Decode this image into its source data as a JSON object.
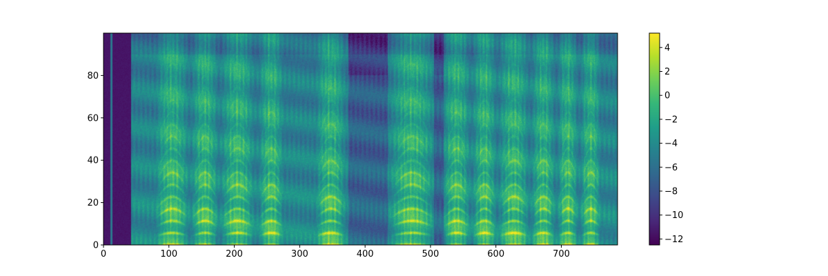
{
  "chart_data": {
    "type": "heatmap",
    "title": "",
    "xlabel": "",
    "ylabel": "",
    "xlim": [
      0,
      786
    ],
    "ylim": [
      0,
      100
    ],
    "x_ticks": [
      "0",
      "100",
      "200",
      "300",
      "400",
      "500",
      "600",
      "700"
    ],
    "y_ticks": [
      "0",
      "20",
      "40",
      "60",
      "80"
    ],
    "colorbar": {
      "colormap": "viridis",
      "range": [
        -12.5,
        5.2
      ],
      "ticks": [
        "4",
        "2",
        "0",
        "−2",
        "−4",
        "−6",
        "−8",
        "−10",
        "−12"
      ]
    },
    "silence_value": -11.5,
    "low_energy_segments": [
      [
        0,
        42
      ],
      [
        375,
        435
      ],
      [
        505,
        520
      ]
    ],
    "thin_vertical_line_x": 12,
    "voiced_segments": [
      [
        80,
        130
      ],
      [
        135,
        175
      ],
      [
        180,
        230
      ],
      [
        238,
        275
      ],
      [
        325,
        370
      ],
      [
        438,
        505
      ],
      [
        520,
        560
      ],
      [
        565,
        600
      ],
      [
        605,
        650
      ],
      [
        655,
        690
      ],
      [
        695,
        725
      ],
      [
        730,
        760
      ]
    ],
    "colors": {
      "viridis": [
        "#440154",
        "#482878",
        "#3e4989",
        "#31688e",
        "#26828e",
        "#1f9e89",
        "#35b779",
        "#6ece58",
        "#b5de2b",
        "#fde725"
      ]
    }
  }
}
